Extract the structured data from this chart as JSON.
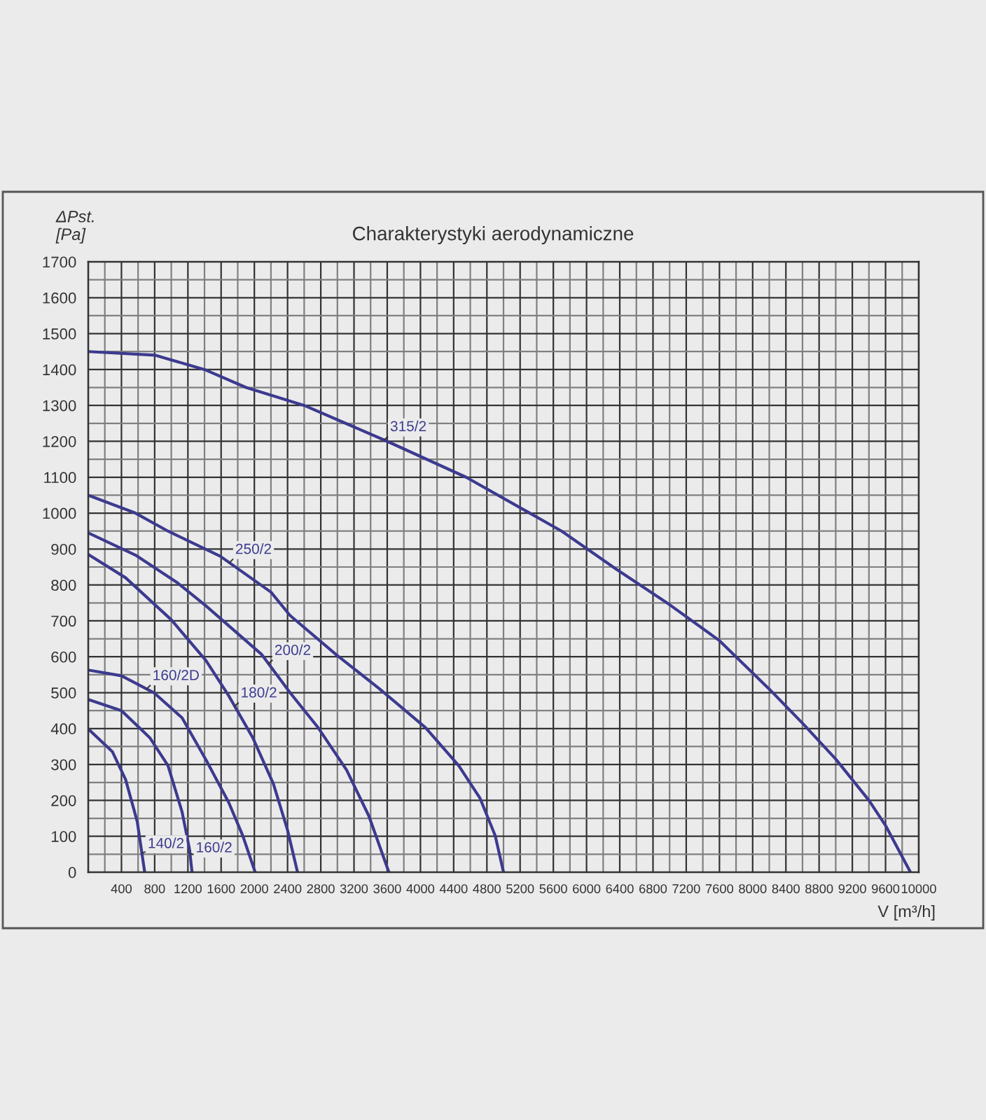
{
  "chart_data": {
    "type": "line",
    "title": "Charakterystyki aerodynamiczne",
    "xlabel": "V [m³/h]",
    "ylabel": "ΔPst.\n[Pa]",
    "xlim": [
      0,
      10000
    ],
    "ylim": [
      0,
      1700
    ],
    "xticks": [
      {
        "value": 0,
        "label": null
      },
      {
        "value": 200,
        "label": null
      },
      400,
      {
        "value": 600,
        "label": null
      },
      800,
      {
        "value": 1000,
        "label": null
      },
      1200,
      {
        "value": 1400,
        "label": null
      },
      1600,
      {
        "value": 1800,
        "label": null
      },
      2000,
      {
        "value": 2200,
        "label": null
      },
      2400,
      {
        "value": 2600,
        "label": null
      },
      2800,
      {
        "value": 3000,
        "label": null
      },
      3200,
      {
        "value": 3400,
        "label": null
      },
      3600,
      {
        "value": 3800,
        "label": null
      },
      4000,
      {
        "value": 4200,
        "label": null
      },
      4400,
      {
        "value": 4600,
        "label": null
      },
      4800,
      {
        "value": 5000,
        "label": null
      },
      5200,
      {
        "value": 5400,
        "label": null
      },
      5600,
      {
        "value": 5800,
        "label": null
      },
      6000,
      {
        "value": 6200,
        "label": null
      },
      6400,
      {
        "value": 6600,
        "label": null
      },
      6800,
      {
        "value": 7000,
        "label": null
      },
      7200,
      {
        "value": 7400,
        "label": null
      },
      7600,
      {
        "value": 7800,
        "label": null
      },
      8000,
      {
        "value": 8200,
        "label": null
      },
      8400,
      {
        "value": 8600,
        "label": null
      },
      8800,
      {
        "value": 9000,
        "label": null
      },
      9200,
      {
        "value": 9400,
        "label": null
      },
      9600,
      {
        "value": 9800,
        "label": null
      },
      10000
    ],
    "yticks": [
      0,
      {
        "value": 50,
        "label": null
      },
      100,
      {
        "value": 150,
        "label": null
      },
      200,
      {
        "value": 250,
        "label": null
      },
      300,
      {
        "value": 350,
        "label": null
      },
      400,
      {
        "value": 450,
        "label": null
      },
      500,
      {
        "value": 550,
        "label": null
      },
      600,
      {
        "value": 650,
        "label": null
      },
      700,
      {
        "value": 750,
        "label": null
      },
      800,
      {
        "value": 850,
        "label": null
      },
      900,
      {
        "value": 950,
        "label": null
      },
      1000,
      {
        "value": 1050,
        "label": null
      },
      1100,
      {
        "value": 1150,
        "label": null
      },
      1200,
      {
        "value": 1250,
        "label": null
      },
      1300,
      {
        "value": 1350,
        "label": null
      },
      1400,
      {
        "value": 1450,
        "label": null
      },
      1500,
      {
        "value": 1550,
        "label": null
      },
      1600,
      {
        "value": 1650,
        "label": null
      },
      1700
    ],
    "grid": true,
    "marker": "none",
    "line_style": "solid",
    "legend": false,
    "series": [
      {
        "name": "315/2",
        "color": "#3c3a8f",
        "x": [
          0,
          800,
          1400,
          1900,
          2600,
          3600,
          4550,
          5700,
          6350,
          7000,
          7600,
          8200,
          8600,
          9000,
          9400,
          9600,
          9900
        ],
        "values": [
          1450,
          1440,
          1400,
          1350,
          1300,
          1200,
          1100,
          950,
          845,
          745,
          645,
          510,
          415,
          315,
          200,
          130,
          0
        ]
      },
      {
        "name": "250/2",
        "color": "#3c3a8f",
        "x": [
          0,
          570,
          960,
          1590,
          2200,
          2430,
          2990,
          3500,
          4060,
          4460,
          4715,
          4900,
          5000
        ],
        "values": [
          1050,
          1000,
          950,
          880,
          780,
          715,
          605,
          512,
          403,
          297,
          207,
          102,
          0
        ]
      },
      {
        "name": "200/2",
        "color": "#3c3a8f",
        "x": [
          0,
          570,
          1080,
          1416,
          2090,
          2430,
          2770,
          3110,
          3380,
          3620
        ],
        "values": [
          945,
          883,
          805,
          742,
          606,
          500,
          402,
          285,
          156,
          0
        ]
      },
      {
        "name": "180/2",
        "color": "#3c3a8f",
        "x": [
          0,
          450,
          1000,
          1416,
          1690,
          1980,
          2230,
          2400,
          2520
        ],
        "values": [
          885,
          820,
          703,
          590,
          492,
          375,
          246,
          117,
          0
        ]
      },
      {
        "name": "160/2D",
        "color": "#3c3a8f",
        "x": [
          0,
          400,
          790,
          1130,
          1420,
          1690,
          1860,
          2010
        ],
        "values": [
          563,
          547,
          500,
          430,
          312,
          195,
          102,
          0
        ]
      },
      {
        "name": "160/2",
        "color": "#3c3a8f",
        "x": [
          0,
          400,
          740,
          960,
          1130,
          1220,
          1250
        ],
        "values": [
          481,
          450,
          375,
          297,
          168,
          63,
          0
        ]
      },
      {
        "name": "140/2",
        "color": "#3c3a8f",
        "x": [
          0,
          290,
          450,
          590,
          680
        ],
        "values": [
          399,
          336,
          258,
          141,
          0
        ]
      }
    ]
  }
}
